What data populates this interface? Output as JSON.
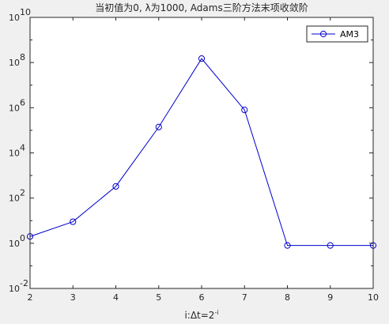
{
  "chart_data": {
    "type": "line",
    "title": "当初值为0, λ为1000, Adams三阶方法末项收敛阶",
    "xlabel": "i:Δt=2",
    "xlabel_superscript": "-i",
    "ylabel": "",
    "xlim": [
      2,
      10
    ],
    "ylim_log10": [
      -2,
      10
    ],
    "yscale": "log",
    "x_ticks": [
      "2",
      "3",
      "4",
      "5",
      "6",
      "7",
      "8",
      "9",
      "10"
    ],
    "y_ticks": [
      {
        "base": "10",
        "exp": "10"
      },
      {
        "base": "10",
        "exp": "8"
      },
      {
        "base": "10",
        "exp": "6"
      },
      {
        "base": "10",
        "exp": "4"
      },
      {
        "base": "10",
        "exp": "2"
      },
      {
        "base": "10",
        "exp": "0"
      },
      {
        "base": "10",
        "exp": "-2"
      }
    ],
    "legend_position": "top-right",
    "grid": false,
    "series": [
      {
        "name": "AM3",
        "color": "#0000cc",
        "marker": "circle",
        "x": [
          2,
          3,
          4,
          5,
          6,
          7,
          8,
          9,
          10
        ],
        "y": [
          2,
          9,
          330,
          140000,
          150000000,
          800000,
          0.8,
          0.8,
          0.8
        ]
      }
    ]
  }
}
